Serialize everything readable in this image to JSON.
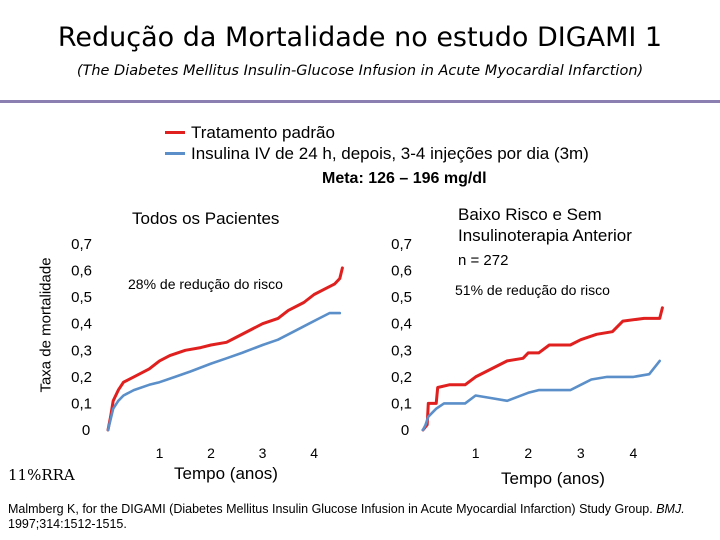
{
  "slide": {
    "title": "Redução da Mortalidade no estudo DIGAMI 1",
    "subtitle": "(The Diabetes Mellitus Insulin-Glucose Infusion in Acute Myocardial Infarction)",
    "legend": [
      {
        "label": "Tratamento padrão",
        "color": "#e0201f"
      },
      {
        "label": "Insulina IV de 24 h, depois, 3-4 injeções por dia (3m)",
        "color": "#5b8fc9"
      }
    ],
    "meta": "Meta: 126 – 196 mg/dl",
    "ylabel": "Taxa de mortalidade",
    "rra": "11%RRA",
    "reference_pre": "Malmberg K, for the DIGAMI (Diabetes Mellitus Insulin Glucose Infusion in Acute Myocardial Infarction) Study Group. ",
    "reference_journal": "BMJ.",
    "reference_post": " 1997;314:1512-1515."
  },
  "chart_data": [
    {
      "type": "line",
      "title": "Todos os Pacientes",
      "annotation": "28% de redução do risco",
      "xlabel": "Tempo (anos)",
      "ylabel": "Taxa de mortalidade",
      "xlim": [
        0,
        4.6
      ],
      "ylim": [
        0,
        0.7
      ],
      "x_ticks": [
        "1",
        "2",
        "3",
        "4"
      ],
      "y_ticks": [
        "0",
        "0,1",
        "0,2",
        "0,3",
        "0,4",
        "0,5",
        "0,6",
        "0,7"
      ],
      "series": [
        {
          "name": "Tratamento padrão",
          "color": "#e0201f",
          "points": [
            [
              0,
              0
            ],
            [
              0.05,
              0.05
            ],
            [
              0.1,
              0.11
            ],
            [
              0.2,
              0.15
            ],
            [
              0.3,
              0.18
            ],
            [
              0.5,
              0.2
            ],
            [
              0.8,
              0.23
            ],
            [
              1.0,
              0.26
            ],
            [
              1.2,
              0.28
            ],
            [
              1.5,
              0.3
            ],
            [
              1.8,
              0.31
            ],
            [
              2.0,
              0.32
            ],
            [
              2.3,
              0.33
            ],
            [
              2.5,
              0.35
            ],
            [
              2.8,
              0.38
            ],
            [
              3.0,
              0.4
            ],
            [
              3.3,
              0.42
            ],
            [
              3.5,
              0.45
            ],
            [
              3.8,
              0.48
            ],
            [
              4.0,
              0.51
            ],
            [
              4.2,
              0.53
            ],
            [
              4.4,
              0.55
            ],
            [
              4.5,
              0.57
            ],
            [
              4.55,
              0.61
            ]
          ]
        },
        {
          "name": "Insulina IV de 24 h, depois, 3-4 injeções por dia (3m)",
          "color": "#5b8fc9",
          "points": [
            [
              0,
              0
            ],
            [
              0.05,
              0.04
            ],
            [
              0.1,
              0.08
            ],
            [
              0.2,
              0.11
            ],
            [
              0.3,
              0.13
            ],
            [
              0.5,
              0.15
            ],
            [
              0.8,
              0.17
            ],
            [
              1.0,
              0.18
            ],
            [
              1.3,
              0.2
            ],
            [
              1.6,
              0.22
            ],
            [
              2.0,
              0.25
            ],
            [
              2.3,
              0.27
            ],
            [
              2.6,
              0.29
            ],
            [
              3.0,
              0.32
            ],
            [
              3.3,
              0.34
            ],
            [
              3.6,
              0.37
            ],
            [
              3.9,
              0.4
            ],
            [
              4.1,
              0.42
            ],
            [
              4.3,
              0.44
            ],
            [
              4.5,
              0.44
            ]
          ]
        }
      ]
    },
    {
      "type": "line",
      "title": "Baixo Risco e Sem Insulinoterapia Anterior",
      "subtitle": "n = 272",
      "annotation": "51% de redução do risco",
      "xlabel": "Tempo (anos)",
      "xlim": [
        0,
        4.6
      ],
      "ylim": [
        0,
        0.7
      ],
      "x_ticks": [
        "1",
        "2",
        "3",
        "4"
      ],
      "y_ticks": [
        "0",
        "0,1",
        "0,2",
        "0,3",
        "0,4",
        "0,5",
        "0,6",
        "0,7"
      ],
      "series": [
        {
          "name": "Tratamento padrão",
          "color": "#e0201f",
          "points": [
            [
              0,
              0
            ],
            [
              0.08,
              0.02
            ],
            [
              0.1,
              0.1
            ],
            [
              0.25,
              0.1
            ],
            [
              0.28,
              0.16
            ],
            [
              0.5,
              0.17
            ],
            [
              0.8,
              0.17
            ],
            [
              1.0,
              0.2
            ],
            [
              1.3,
              0.23
            ],
            [
              1.6,
              0.26
            ],
            [
              1.9,
              0.27
            ],
            [
              2.0,
              0.29
            ],
            [
              2.2,
              0.29
            ],
            [
              2.4,
              0.32
            ],
            [
              2.8,
              0.32
            ],
            [
              3.0,
              0.34
            ],
            [
              3.3,
              0.36
            ],
            [
              3.6,
              0.37
            ],
            [
              3.8,
              0.41
            ],
            [
              4.2,
              0.42
            ],
            [
              4.5,
              0.42
            ],
            [
              4.55,
              0.46
            ]
          ]
        },
        {
          "name": "Insulina IV de 24 h, depois, 3-4 injeções por dia (3m)",
          "color": "#5b8fc9",
          "points": [
            [
              0,
              0
            ],
            [
              0.05,
              0.02
            ],
            [
              0.1,
              0.05
            ],
            [
              0.25,
              0.08
            ],
            [
              0.4,
              0.1
            ],
            [
              0.6,
              0.1
            ],
            [
              0.8,
              0.1
            ],
            [
              1.0,
              0.13
            ],
            [
              1.3,
              0.12
            ],
            [
              1.6,
              0.11
            ],
            [
              2.0,
              0.14
            ],
            [
              2.2,
              0.15
            ],
            [
              2.5,
              0.15
            ],
            [
              2.8,
              0.15
            ],
            [
              3.0,
              0.17
            ],
            [
              3.2,
              0.19
            ],
            [
              3.5,
              0.2
            ],
            [
              4.0,
              0.2
            ],
            [
              4.3,
              0.21
            ],
            [
              4.5,
              0.26
            ]
          ]
        }
      ]
    }
  ]
}
